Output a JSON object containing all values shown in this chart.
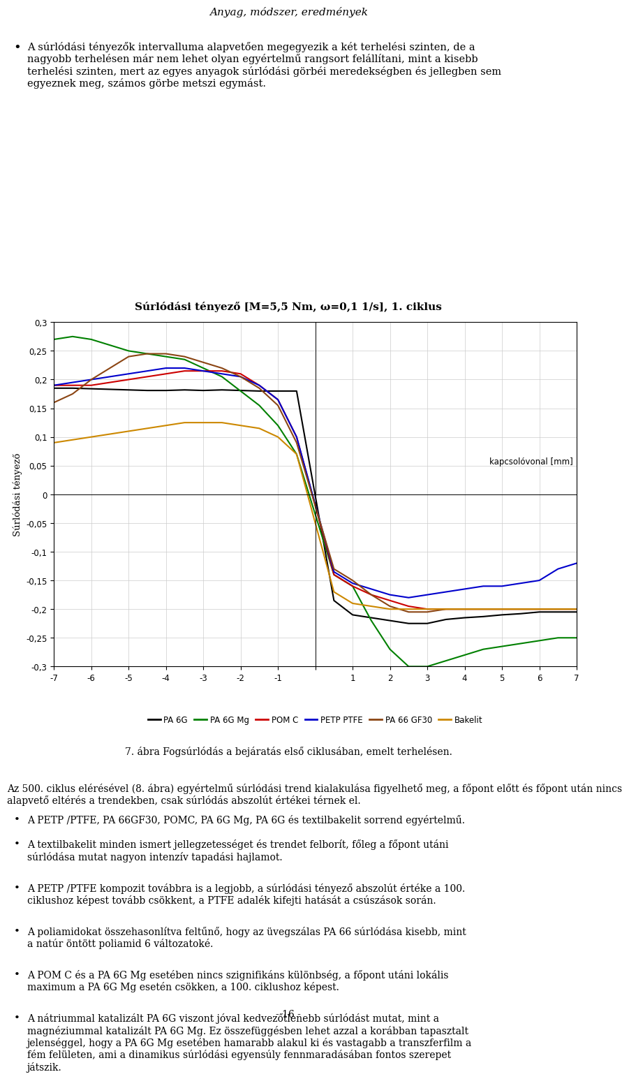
{
  "page_header": "Anyag, módszer, eredmények",
  "page_number": "- 16 -",
  "bullet_text_top": "A súrlódási tényezők intervalluma alapvetően megegyezik a két terhelési szinten, de a nagyobb terhelésen már nem lehet olyan egyértelmű rangsort felállítani, mint a kisebb terhelési szinten, mert az egyes anyagok súrlódási görbéi meredekségben és jellegben sem egyeznek meg, számos görbe metszi egymást.",
  "chart_title": "Súrlódási tényező [M=5,5 Nm, ω=0,1 1/s], 1. ciklus",
  "chart_ylabel": "Súrlódási tényező",
  "chart_xlabel_annotation": "kapcsolóvonal [mm]",
  "chart_caption": "7. ábra Fogsúrlódás a bejáratás első ciklusában, emelt terhelésen.",
  "xlim": [
    -7,
    7
  ],
  "ylim": [
    -0.3,
    0.3
  ],
  "yticks": [
    -0.3,
    -0.25,
    -0.2,
    -0.15,
    -0.1,
    -0.05,
    0,
    0.05,
    0.1,
    0.15,
    0.2,
    0.25,
    0.3
  ],
  "xticks": [
    -7,
    -6,
    -5,
    -4,
    -3,
    -2,
    -1,
    0,
    1,
    2,
    3,
    4,
    5,
    6,
    7
  ],
  "intro_text": "Az 500. ciklus elérésével (8. ábra) egyértelmű súrlódási trend kialakulása figyelhető meg, a főpont előtt és főpont után nincs alapvető eltérés a trendekben, csak súrlódás abszolút értékei térnek el.",
  "bullets_bottom": [
    "A PETP /PTFE, PA 66GF30, POMC, PA 6G Mg, PA 6G és textilbakelit sorrend egyértelmű.",
    "A textilbakelit minden ismert jellegzetességet és trendet felborít, főleg a főpont utáni súrlódása mutat nagyon intenzív tapadási hajlamot.",
    "A PETP /PTFE kompozit továbbra is a legjobb, a súrlódási tényező abszolút értéke a 100. ciklushoz képest tovább csökkent, a PTFE adalék kifejti hatását a csúszások során.",
    "A poliamidokat összehasonlítva feltűnő, hogy az üvegszálas PA 66 súrlódása kisebb, mint a natúr öntött poliamid 6 változatoké.",
    "A POM C és a PA 6G Mg esetében nincs szignifikáns különbség, a főpont utáni lokális maximum a PA 6G Mg esetén csökken, a 100. ciklushoz képest.",
    "A nátriummal katalizált PA 6G viszont jóval kedvezőtlenebb súrlódást mutat, mint a magnéziummal katalizált PA 6G Mg. Ez összefüggésben lehet azzal a korábban tapasztalt jelenséggel, hogy a PA 6G Mg esetében hamarabb alakul ki és vastagabb a transzferfilm a fém felületen, ami a dinamikus súrlódási egyensúly fennmaradásában fontos szerepet játszik."
  ],
  "series": {
    "PA 6G": {
      "color": "#000000",
      "x": [
        -7,
        -6.5,
        -6,
        -5.5,
        -5,
        -4.5,
        -4,
        -3.5,
        -3,
        -2.5,
        -2,
        -1.5,
        -1,
        -0.5,
        0.5,
        1,
        1.5,
        2,
        2.5,
        3,
        3.5,
        4,
        4.5,
        5,
        5.5,
        6,
        6.5,
        7
      ],
      "y": [
        0.185,
        0.185,
        0.184,
        0.183,
        0.182,
        0.181,
        0.181,
        0.182,
        0.181,
        0.182,
        0.181,
        0.18,
        0.18,
        0.18,
        -0.185,
        -0.21,
        -0.215,
        -0.22,
        -0.225,
        -0.225,
        -0.218,
        -0.215,
        -0.213,
        -0.21,
        -0.208,
        -0.205,
        -0.205,
        -0.205
      ]
    },
    "PA 6G Mg": {
      "color": "#008000",
      "x": [
        -7,
        -6.5,
        -6,
        -5.5,
        -5,
        -4.5,
        -4,
        -3.5,
        -3,
        -2.5,
        -2,
        -1.5,
        -1,
        -0.5,
        0.5,
        1,
        1.5,
        2,
        2.5,
        3,
        3.5,
        4,
        4.5,
        5,
        5.5,
        6,
        6.5,
        7
      ],
      "y": [
        0.27,
        0.275,
        0.27,
        0.26,
        0.25,
        0.245,
        0.24,
        0.235,
        0.22,
        0.205,
        0.18,
        0.155,
        0.12,
        0.07,
        -0.14,
        -0.16,
        -0.22,
        -0.27,
        -0.3,
        -0.3,
        -0.29,
        -0.28,
        -0.27,
        -0.265,
        -0.26,
        -0.255,
        -0.25,
        -0.25
      ]
    },
    "POM C": {
      "color": "#cc0000",
      "x": [
        -7,
        -6.5,
        -6,
        -5.5,
        -5,
        -4.5,
        -4,
        -3.5,
        -3,
        -2.5,
        -2,
        -1.5,
        -1,
        -0.5,
        0.5,
        1,
        1.5,
        2,
        2.5,
        3,
        3.5,
        4,
        4.5,
        5,
        5.5,
        6,
        6.5,
        7
      ],
      "y": [
        0.19,
        0.19,
        0.19,
        0.195,
        0.2,
        0.205,
        0.21,
        0.215,
        0.215,
        0.215,
        0.21,
        0.19,
        0.165,
        0.1,
        -0.14,
        -0.16,
        -0.175,
        -0.185,
        -0.195,
        -0.2,
        -0.2,
        -0.2,
        -0.2,
        -0.2,
        -0.2,
        -0.2,
        -0.2,
        -0.2
      ]
    },
    "PETP PTFE": {
      "color": "#0000cc",
      "x": [
        -7,
        -6.5,
        -6,
        -5.5,
        -5,
        -4.5,
        -4,
        -3.5,
        -3,
        -2.5,
        -2,
        -1.5,
        -1,
        -0.5,
        0.5,
        1,
        1.5,
        2,
        2.5,
        3,
        3.5,
        4,
        4.5,
        5,
        5.5,
        6,
        6.5,
        7
      ],
      "y": [
        0.19,
        0.195,
        0.2,
        0.205,
        0.21,
        0.215,
        0.22,
        0.22,
        0.215,
        0.21,
        0.205,
        0.19,
        0.165,
        0.1,
        -0.135,
        -0.155,
        -0.165,
        -0.175,
        -0.18,
        -0.175,
        -0.17,
        -0.165,
        -0.16,
        -0.16,
        -0.155,
        -0.15,
        -0.13,
        -0.12
      ]
    },
    "PA 66 GF30": {
      "color": "#8B4513",
      "x": [
        -7,
        -6.5,
        -6,
        -5.5,
        -5,
        -4.5,
        -4,
        -3.5,
        -3,
        -2.5,
        -2,
        -1.5,
        -1,
        -0.5,
        0.5,
        1,
        1.5,
        2,
        2.5,
        3,
        3.5,
        4,
        4.5,
        5,
        5.5,
        6,
        6.5,
        7
      ],
      "y": [
        0.16,
        0.175,
        0.2,
        0.22,
        0.24,
        0.245,
        0.245,
        0.24,
        0.23,
        0.22,
        0.205,
        0.185,
        0.155,
        0.09,
        -0.13,
        -0.15,
        -0.175,
        -0.195,
        -0.205,
        -0.205,
        -0.2,
        -0.2,
        -0.2,
        -0.2,
        -0.2,
        -0.2,
        -0.2,
        -0.2
      ]
    },
    "Bakelit": {
      "color": "#cc8800",
      "x": [
        -7,
        -6.5,
        -6,
        -5.5,
        -5,
        -4.5,
        -4,
        -3.5,
        -3,
        -2.5,
        -2,
        -1.5,
        -1,
        -0.5,
        0.5,
        1,
        1.5,
        2,
        2.5,
        3,
        3.5,
        4,
        4.5,
        5,
        5.5,
        6,
        6.5,
        7
      ],
      "y": [
        0.09,
        0.095,
        0.1,
        0.105,
        0.11,
        0.115,
        0.12,
        0.125,
        0.125,
        0.125,
        0.12,
        0.115,
        0.1,
        0.07,
        -0.17,
        -0.19,
        -0.195,
        -0.2,
        -0.2,
        -0.2,
        -0.2,
        -0.2,
        -0.2,
        -0.2,
        -0.2,
        -0.2,
        -0.2,
        -0.2
      ]
    }
  }
}
